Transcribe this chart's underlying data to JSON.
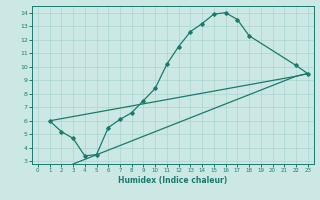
{
  "xlabel": "Humidex (Indice chaleur)",
  "bg_color": "#cce8e4",
  "grid_color": "#aad4d0",
  "line_color": "#1a7a6e",
  "xlim": [
    -0.5,
    23.5
  ],
  "ylim": [
    2.8,
    14.5
  ],
  "xticks": [
    0,
    1,
    2,
    3,
    4,
    5,
    6,
    7,
    8,
    9,
    10,
    11,
    12,
    13,
    14,
    15,
    16,
    17,
    18,
    19,
    20,
    21,
    22,
    23
  ],
  "yticks": [
    3,
    4,
    5,
    6,
    7,
    8,
    9,
    10,
    11,
    12,
    13,
    14
  ],
  "line1_x": [
    1,
    2,
    3,
    4,
    5,
    6,
    7,
    8,
    9,
    10,
    11,
    12,
    13,
    14,
    15,
    16,
    17,
    18,
    22,
    23
  ],
  "line1_y": [
    6.0,
    5.2,
    4.7,
    3.4,
    3.5,
    5.5,
    6.1,
    6.6,
    7.5,
    8.4,
    10.2,
    11.5,
    12.6,
    13.2,
    13.9,
    14.0,
    13.5,
    12.3,
    10.1,
    9.5
  ],
  "line2_x": [
    1,
    22,
    23
  ],
  "line2_y": [
    6.0,
    9.3,
    9.5
  ],
  "line3_x": [
    3,
    22,
    23
  ],
  "line3_y": [
    2.8,
    9.3,
    9.5
  ]
}
